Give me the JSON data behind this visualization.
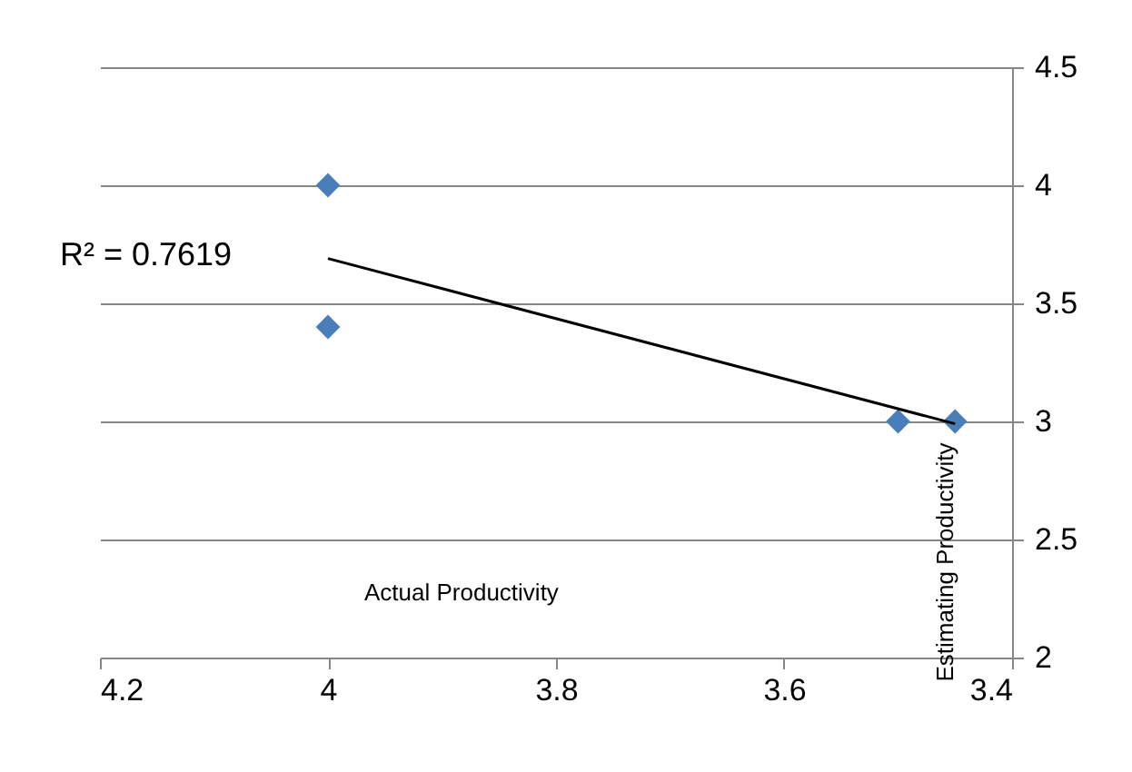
{
  "chart_data": {
    "type": "scatter",
    "xlabel": "Actual Productivity",
    "ylabel": "Estimating Productivity",
    "xlim": [
      4.2,
      3.4
    ],
    "xticks": [
      4.2,
      4,
      3.8,
      3.6,
      3.4
    ],
    "ylim": [
      2,
      4.5
    ],
    "yticks": [
      2,
      2.5,
      3,
      3.5,
      4,
      4.5
    ],
    "grid": "y",
    "series": [
      {
        "color": "#4a7ebb",
        "x": [
          4,
          4,
          3.5,
          3.45
        ],
        "values": [
          4,
          3.4,
          3,
          3
        ],
        "marker": "diamond"
      },
      {
        "type": "line",
        "color": "#000000",
        "x": [
          4,
          3.45
        ],
        "values": [
          3.69,
          2.99
        ],
        "line_style": "solid",
        "marker": "none"
      }
    ],
    "annotations": [
      "R² = 0.7619"
    ]
  }
}
